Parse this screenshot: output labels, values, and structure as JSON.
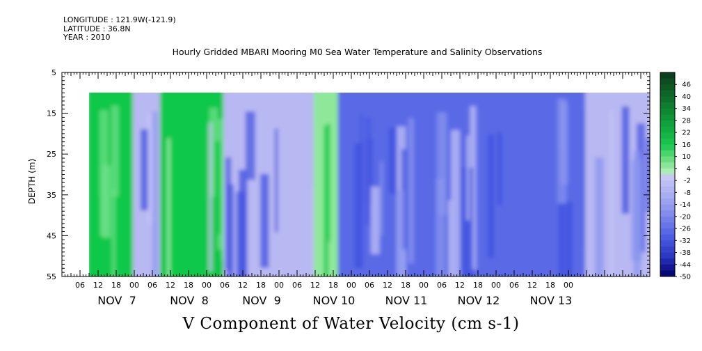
{
  "header": {
    "longitude": "LONGITUDE : 121.9W(-121.9)",
    "latitude": "LATITUDE : 36.8N",
    "year": "YEAR : 2010",
    "title": "Hourly Gridded MBARI Mooring M0 Sea Water Temperature and Salinity Observations"
  },
  "chart_data": {
    "type": "heatmap",
    "title": "V Component of Water Velocity (cm s-1)",
    "ylabel": "DEPTH (m)",
    "y_axis": {
      "ticks": [
        5,
        15,
        25,
        35,
        45,
        55
      ],
      "range": [
        5,
        55
      ],
      "inverted": true
    },
    "x_axis": {
      "hour_ticks": [
        "06",
        "12",
        "18",
        "00",
        "06",
        "12",
        "18",
        "00",
        "06",
        "12",
        "18",
        "00",
        "06",
        "12",
        "18",
        "00",
        "06",
        "12",
        "18",
        "00",
        "06",
        "12",
        "18",
        "00",
        "06",
        "12",
        "18",
        "00"
      ],
      "day_labels": [
        "NOV  7",
        "NOV  8",
        "NOV  9",
        "NOV 10",
        "NOV 11",
        "NOV 12",
        "NOV 13"
      ],
      "range": [
        "2010-11-06T00:00",
        "2010-11-14T03:00"
      ]
    },
    "data_depth_range": [
      10,
      55
    ],
    "data_time_start": "2010-11-06T09:00",
    "colorbar": {
      "labels": [
        "46",
        "40",
        "34",
        "28",
        "22",
        "16",
        "10",
        "4",
        "-2",
        "-8",
        "-14",
        "-20",
        "-26",
        "-32",
        "-38",
        "-44",
        "-50"
      ],
      "range": [
        -50,
        52
      ],
      "colors": {
        "strong_positive": "#0e3f1e",
        "positive": "#10c84a",
        "weak_positive": "#8fe89a",
        "weak_negative": "#b8b8f2",
        "negative": "#5a6ae6",
        "strong_negative": "#00006e"
      }
    },
    "pattern_rows": [
      {
        "depth": "10-55",
        "segments": [
          {
            "from": "2010-11-06T09:00",
            "to": "2010-11-07T00:00",
            "sign": "positive"
          },
          {
            "from": "2010-11-07T00:00",
            "to": "2010-11-07T09:00",
            "sign": "weak_negative"
          },
          {
            "from": "2010-11-07T09:00",
            "to": "2010-11-08T06:00",
            "sign": "positive"
          },
          {
            "from": "2010-11-08T06:00",
            "to": "2010-11-09T12:00",
            "sign": "weak_negative"
          },
          {
            "from": "2010-11-09T12:00",
            "to": "2010-11-09T20:00",
            "sign": "weak_positive"
          },
          {
            "from": "2010-11-09T20:00",
            "to": "2010-11-13T06:00",
            "sign": "negative"
          },
          {
            "from": "2010-11-13T06:00",
            "to": "2010-11-14T03:00",
            "sign": "weak_negative"
          }
        ]
      }
    ]
  }
}
